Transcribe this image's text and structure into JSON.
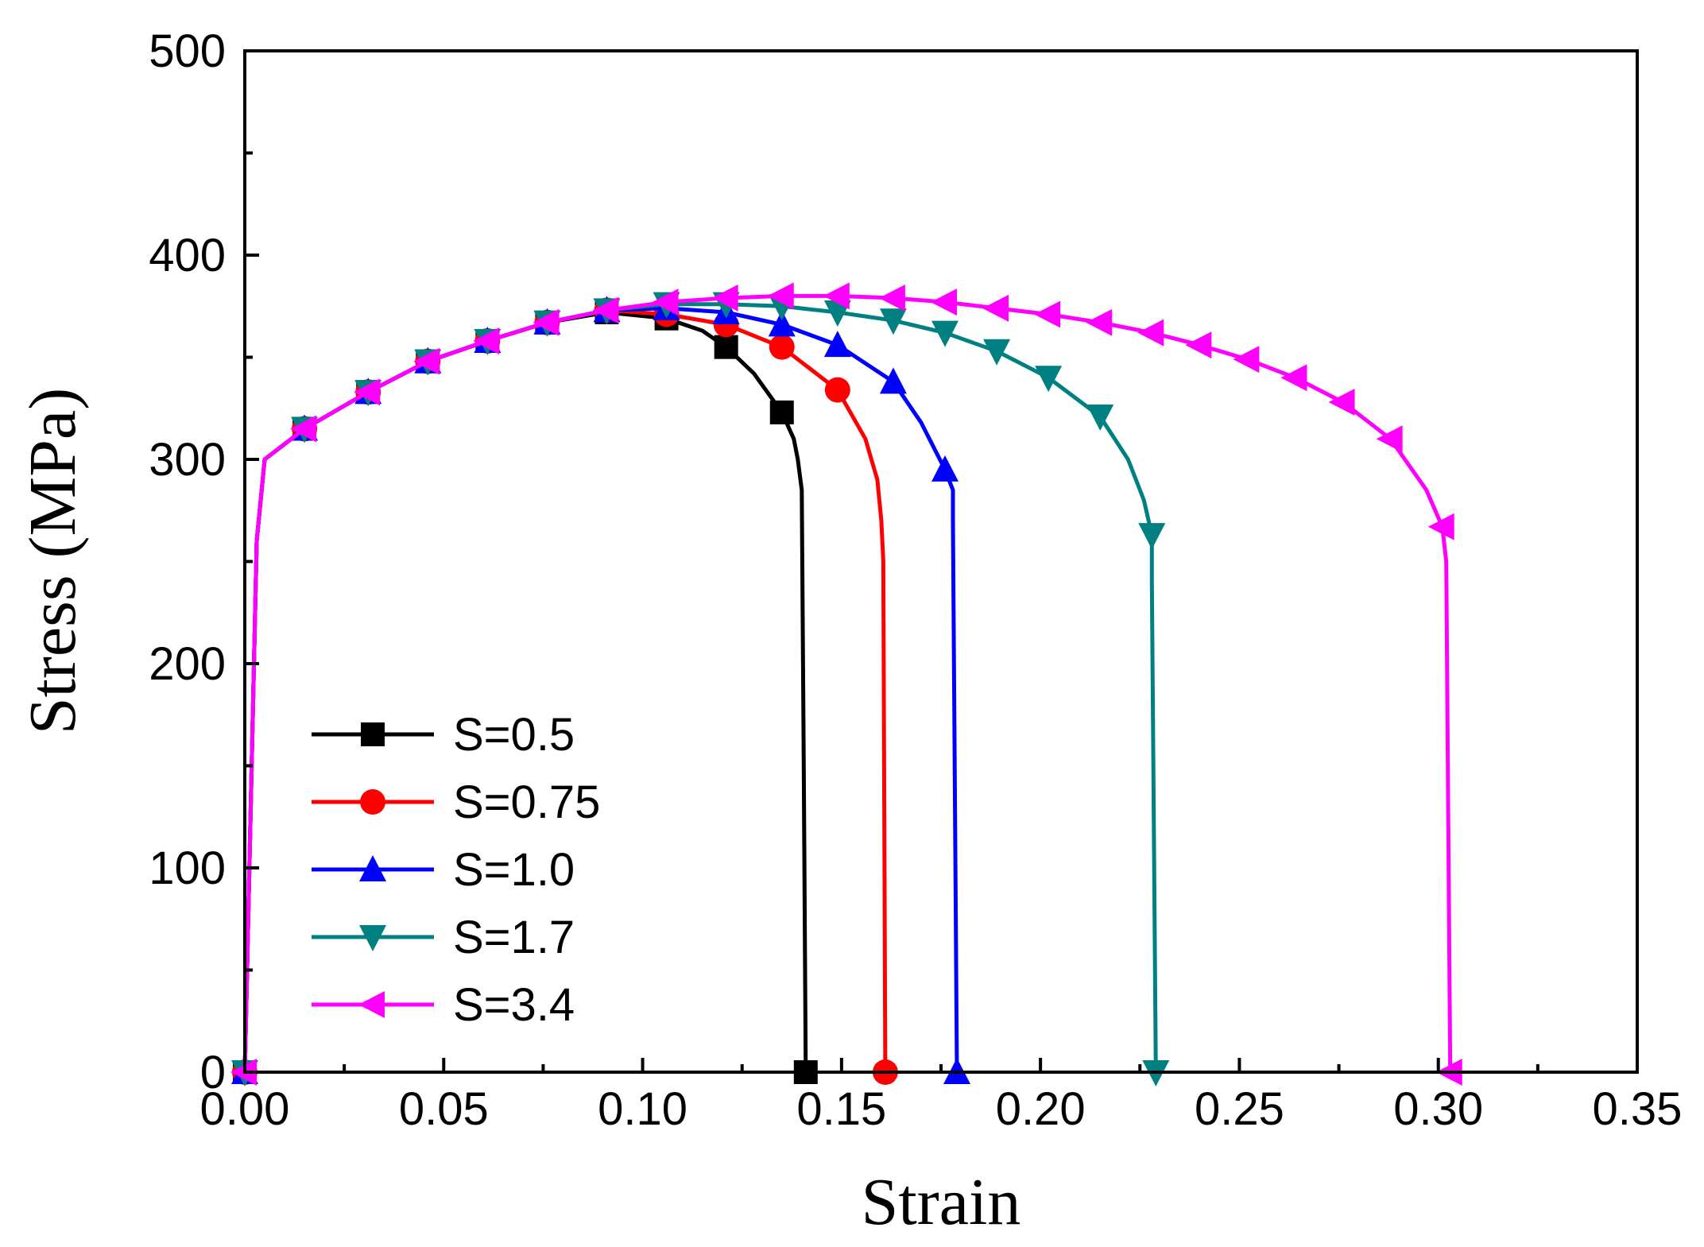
{
  "chart_data": {
    "type": "line",
    "title": "",
    "xlabel": "Strain",
    "ylabel": "Stress (MPa)",
    "xlim": [
      0.0,
      0.35
    ],
    "ylim": [
      0,
      500
    ],
    "xticks": [
      "0.00",
      "0.05",
      "0.10",
      "0.15",
      "0.20",
      "0.25",
      "0.30",
      "0.35"
    ],
    "yticks": [
      "0",
      "100",
      "200",
      "300",
      "400",
      "500"
    ],
    "grid": false,
    "legend_position": "bottom-left",
    "series": [
      {
        "name": "S=0.5",
        "color": "#000000",
        "marker": "square",
        "line": [
          [
            0,
            0
          ],
          [
            0.003,
            260
          ],
          [
            0.005,
            300
          ],
          [
            0.015,
            315
          ],
          [
            0.031,
            333
          ],
          [
            0.046,
            348
          ],
          [
            0.061,
            358
          ],
          [
            0.076,
            367
          ],
          [
            0.091,
            372
          ],
          [
            0.106,
            369
          ],
          [
            0.115,
            363
          ],
          [
            0.121,
            355
          ],
          [
            0.128,
            342
          ],
          [
            0.135,
            323
          ],
          [
            0.138,
            310
          ],
          [
            0.139,
            300
          ],
          [
            0.14,
            285
          ],
          [
            0.1405,
            150
          ],
          [
            0.141,
            0
          ]
        ],
        "markers": [
          [
            0,
            0
          ],
          [
            0.015,
            315
          ],
          [
            0.031,
            333
          ],
          [
            0.046,
            348
          ],
          [
            0.061,
            358
          ],
          [
            0.076,
            367
          ],
          [
            0.091,
            372
          ],
          [
            0.106,
            369
          ],
          [
            0.121,
            355
          ],
          [
            0.135,
            323
          ],
          [
            0.141,
            0
          ]
        ]
      },
      {
        "name": "S=0.75",
        "color": "#ff0000",
        "marker": "circle",
        "line": [
          [
            0,
            0
          ],
          [
            0.003,
            260
          ],
          [
            0.005,
            300
          ],
          [
            0.015,
            315
          ],
          [
            0.031,
            333
          ],
          [
            0.046,
            348
          ],
          [
            0.061,
            358
          ],
          [
            0.076,
            367
          ],
          [
            0.091,
            373
          ],
          [
            0.106,
            371
          ],
          [
            0.121,
            366
          ],
          [
            0.135,
            355
          ],
          [
            0.149,
            334
          ],
          [
            0.156,
            310
          ],
          [
            0.159,
            290
          ],
          [
            0.16,
            270
          ],
          [
            0.1605,
            250
          ],
          [
            0.161,
            0
          ]
        ],
        "markers": [
          [
            0,
            0
          ],
          [
            0.015,
            315
          ],
          [
            0.031,
            333
          ],
          [
            0.046,
            348
          ],
          [
            0.061,
            358
          ],
          [
            0.076,
            367
          ],
          [
            0.091,
            373
          ],
          [
            0.106,
            371
          ],
          [
            0.121,
            366
          ],
          [
            0.135,
            355
          ],
          [
            0.149,
            334
          ],
          [
            0.161,
            0
          ]
        ]
      },
      {
        "name": "S=1.0",
        "color": "#0000ff",
        "marker": "triangle-up",
        "line": [
          [
            0,
            0
          ],
          [
            0.003,
            260
          ],
          [
            0.005,
            300
          ],
          [
            0.015,
            315
          ],
          [
            0.031,
            333
          ],
          [
            0.046,
            348
          ],
          [
            0.061,
            358
          ],
          [
            0.076,
            367
          ],
          [
            0.091,
            373
          ],
          [
            0.106,
            374
          ],
          [
            0.121,
            372
          ],
          [
            0.135,
            366
          ],
          [
            0.149,
            356
          ],
          [
            0.163,
            338
          ],
          [
            0.17,
            318
          ],
          [
            0.176,
            295
          ],
          [
            0.178,
            285
          ],
          [
            0.178,
            270
          ],
          [
            0.179,
            0
          ]
        ],
        "markers": [
          [
            0,
            0
          ],
          [
            0.015,
            315
          ],
          [
            0.031,
            333
          ],
          [
            0.046,
            348
          ],
          [
            0.061,
            358
          ],
          [
            0.076,
            367
          ],
          [
            0.091,
            373
          ],
          [
            0.106,
            374
          ],
          [
            0.121,
            372
          ],
          [
            0.135,
            366
          ],
          [
            0.149,
            356
          ],
          [
            0.163,
            338
          ],
          [
            0.176,
            295
          ],
          [
            0.179,
            0
          ]
        ]
      },
      {
        "name": "S=1.7",
        "color": "#008080",
        "marker": "triangle-down",
        "line": [
          [
            0,
            0
          ],
          [
            0.003,
            260
          ],
          [
            0.005,
            300
          ],
          [
            0.015,
            315
          ],
          [
            0.031,
            333
          ],
          [
            0.046,
            348
          ],
          [
            0.061,
            358
          ],
          [
            0.076,
            367
          ],
          [
            0.091,
            373
          ],
          [
            0.106,
            376
          ],
          [
            0.121,
            376
          ],
          [
            0.135,
            375
          ],
          [
            0.149,
            372
          ],
          [
            0.163,
            368
          ],
          [
            0.176,
            362
          ],
          [
            0.189,
            353
          ],
          [
            0.202,
            340
          ],
          [
            0.215,
            321
          ],
          [
            0.222,
            300
          ],
          [
            0.226,
            280
          ],
          [
            0.228,
            263
          ],
          [
            0.228,
            240
          ],
          [
            0.229,
            0
          ]
        ],
        "markers": [
          [
            0,
            0
          ],
          [
            0.015,
            315
          ],
          [
            0.031,
            333
          ],
          [
            0.046,
            348
          ],
          [
            0.061,
            358
          ],
          [
            0.076,
            367
          ],
          [
            0.091,
            373
          ],
          [
            0.106,
            376
          ],
          [
            0.121,
            376
          ],
          [
            0.135,
            375
          ],
          [
            0.149,
            372
          ],
          [
            0.163,
            368
          ],
          [
            0.176,
            362
          ],
          [
            0.189,
            353
          ],
          [
            0.202,
            340
          ],
          [
            0.215,
            321
          ],
          [
            0.228,
            263
          ],
          [
            0.229,
            0
          ]
        ]
      },
      {
        "name": "S=3.4",
        "color": "#ff00ff",
        "marker": "triangle-left",
        "line": [
          [
            0,
            0
          ],
          [
            0.003,
            260
          ],
          [
            0.005,
            300
          ],
          [
            0.015,
            315
          ],
          [
            0.031,
            333
          ],
          [
            0.046,
            348
          ],
          [
            0.061,
            358
          ],
          [
            0.076,
            367
          ],
          [
            0.091,
            373
          ],
          [
            0.106,
            377
          ],
          [
            0.121,
            379
          ],
          [
            0.135,
            380
          ],
          [
            0.149,
            380
          ],
          [
            0.163,
            379
          ],
          [
            0.176,
            377
          ],
          [
            0.189,
            374
          ],
          [
            0.202,
            371
          ],
          [
            0.215,
            367
          ],
          [
            0.228,
            362
          ],
          [
            0.24,
            356
          ],
          [
            0.252,
            349
          ],
          [
            0.264,
            340
          ],
          [
            0.276,
            328
          ],
          [
            0.288,
            310
          ],
          [
            0.297,
            285
          ],
          [
            0.301,
            267
          ],
          [
            0.302,
            250
          ],
          [
            0.303,
            0
          ]
        ],
        "markers": [
          [
            0,
            0
          ],
          [
            0.015,
            315
          ],
          [
            0.031,
            333
          ],
          [
            0.046,
            348
          ],
          [
            0.061,
            358
          ],
          [
            0.076,
            367
          ],
          [
            0.091,
            373
          ],
          [
            0.106,
            377
          ],
          [
            0.121,
            379
          ],
          [
            0.135,
            380
          ],
          [
            0.149,
            380
          ],
          [
            0.163,
            379
          ],
          [
            0.176,
            377
          ],
          [
            0.189,
            374
          ],
          [
            0.202,
            371
          ],
          [
            0.215,
            367
          ],
          [
            0.228,
            362
          ],
          [
            0.24,
            356
          ],
          [
            0.252,
            349
          ],
          [
            0.264,
            340
          ],
          [
            0.276,
            328
          ],
          [
            0.288,
            310
          ],
          [
            0.301,
            267
          ],
          [
            0.303,
            0
          ]
        ]
      }
    ]
  }
}
